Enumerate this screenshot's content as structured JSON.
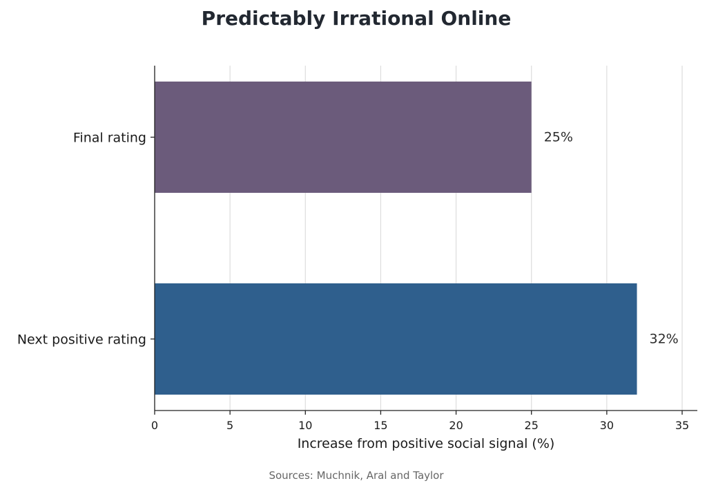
{
  "chart_data": {
    "type": "bar",
    "orientation": "horizontal",
    "title": "Predictably Irrational Online",
    "xlabel": "Increase from positive social signal (%)",
    "ylabel": "",
    "categories": [
      "Final rating",
      "Next positive rating"
    ],
    "values": [
      25,
      32
    ],
    "data_labels": [
      "25%",
      "32%"
    ],
    "colors": [
      "#6b5b7b",
      "#2f5f8d"
    ],
    "xlim": [
      0,
      36
    ],
    "xticks": [
      0,
      5,
      10,
      15,
      20,
      25,
      30,
      35
    ],
    "grid": "vertical",
    "legend": "none"
  },
  "footer": {
    "source": "Sources: Muchnik, Aral and Taylor"
  }
}
